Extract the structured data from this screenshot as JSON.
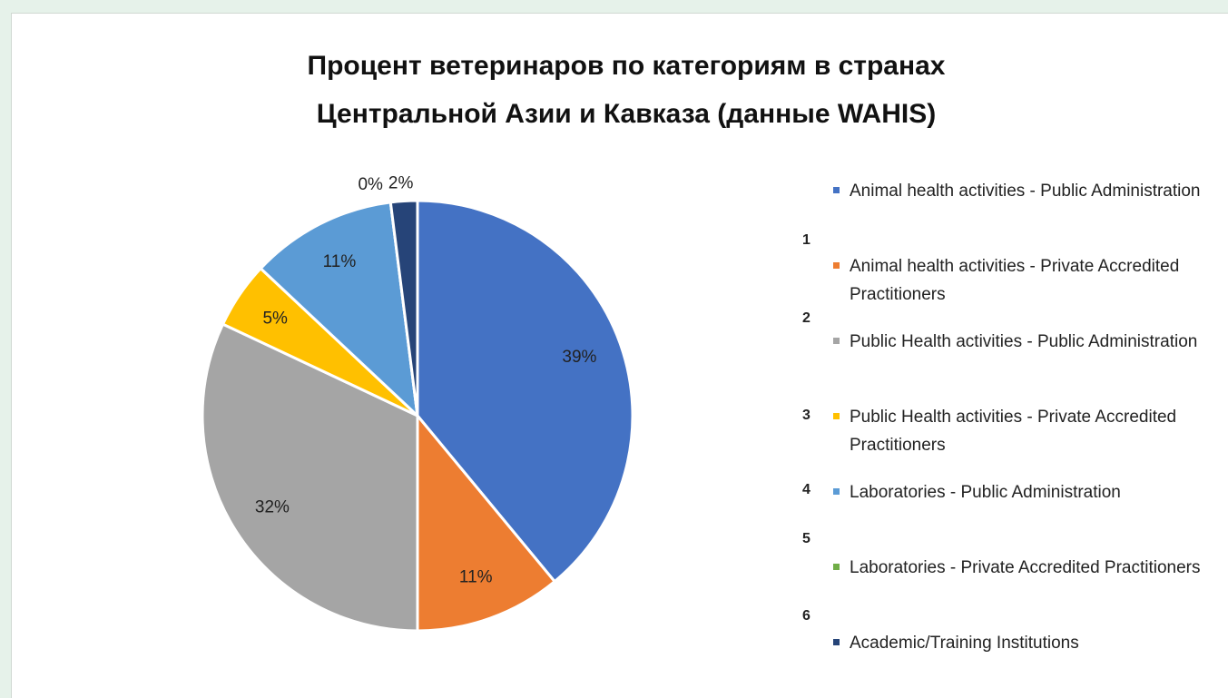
{
  "chart_data": {
    "type": "pie",
    "title": [
      "Процент ветеринаров по категориям в странах",
      "Центральной Азии и Кавказа (данные WAHIS)"
    ],
    "categories": [
      "Animal health activities - Public Administration",
      "Animal health activities - Private Accredited Practitioners",
      "Public Health activities - Public Administration",
      "Public Health activities - Private Accredited Practitioners",
      "Laboratories - Public Administration",
      "Laboratories - Private Accredited Practitioners",
      "Academic/Training Institutions"
    ],
    "values": [
      39,
      11,
      32,
      5,
      11,
      0,
      2
    ],
    "value_labels": [
      "39%",
      "11%",
      "32%",
      "5%",
      "11%",
      "0%",
      "2%"
    ],
    "colors": [
      "#4472c4",
      "#ed7d31",
      "#a5a5a5",
      "#ffc000",
      "#5b9bd5",
      "#70ad47",
      "#264478"
    ],
    "legend_row_numbers": [
      1,
      2,
      3,
      4,
      5,
      6
    ],
    "legend": "right"
  }
}
